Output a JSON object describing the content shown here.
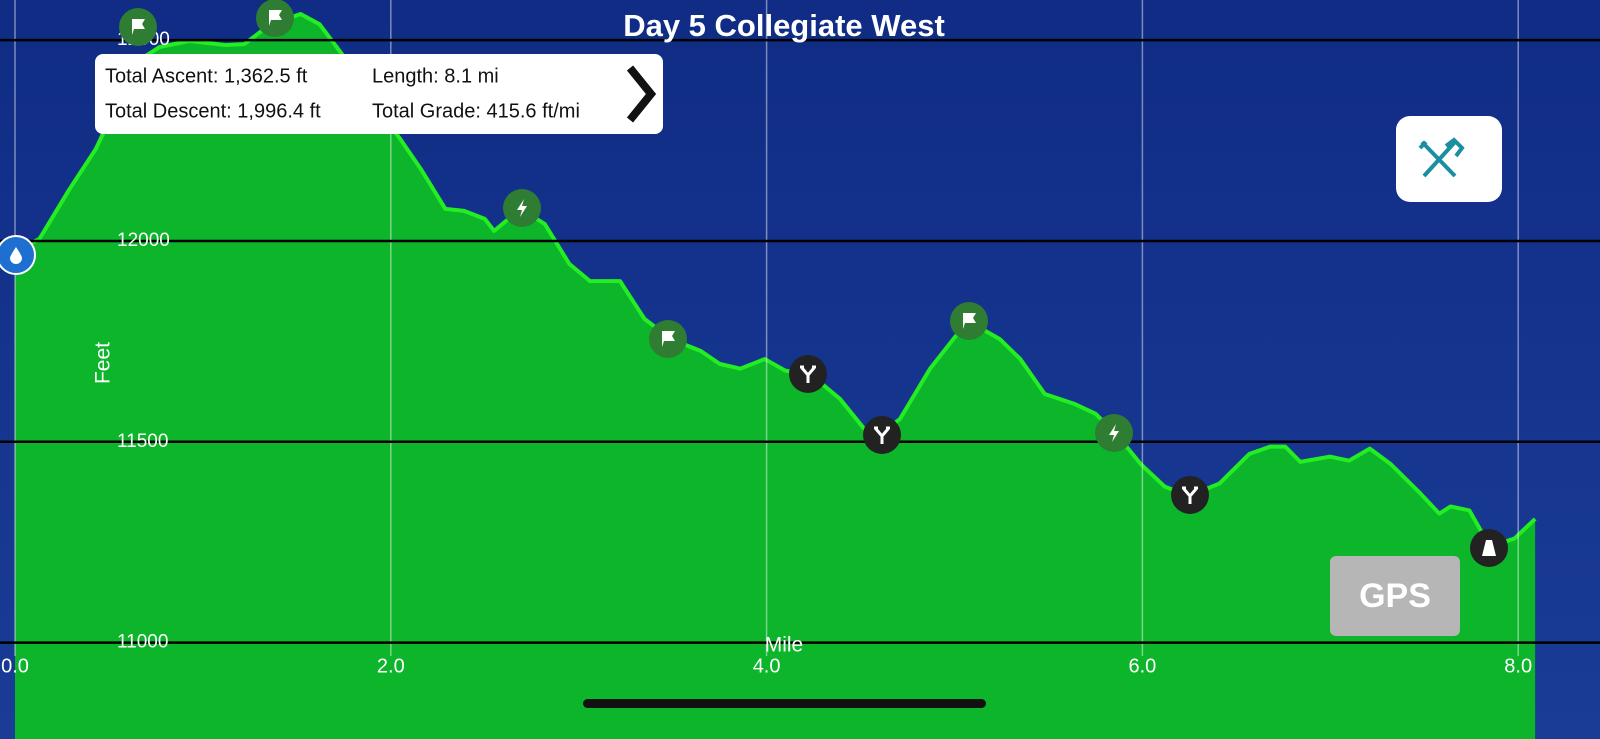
{
  "chart_data": {
    "type": "area",
    "title": "Day 5 Collegiate West",
    "x_label": "Mile",
    "y_label": "Feet",
    "x": [
      0,
      0.13,
      0.29,
      0.43,
      0.51,
      0.67,
      0.77,
      0.93,
      1.12,
      1.22,
      1.36,
      1.52,
      1.62,
      1.76,
      1.89,
      2.05,
      2.16,
      2.29,
      2.39,
      2.5,
      2.55,
      2.69,
      2.82,
      2.95,
      3.06,
      3.22,
      3.35,
      3.49,
      3.65,
      3.75,
      3.86,
      3.99,
      4.1,
      4.23,
      4.39,
      4.52,
      4.61,
      4.71,
      4.87,
      5.07,
      5.24,
      5.35,
      5.48,
      5.64,
      5.75,
      5.86,
      5.99,
      6.12,
      6.25,
      6.41,
      6.57,
      6.68,
      6.76,
      6.84,
      7.0,
      7.1,
      7.21,
      7.32,
      7.48,
      7.58,
      7.64,
      7.74,
      7.85,
      7.98,
      8.09
    ],
    "series": [
      {
        "color": "#22ee22",
        "values": [
          11975,
          12005,
          12129,
          12229,
          12308,
          12453,
          12483,
          12498,
          12488,
          12490,
          12540,
          12565,
          12540,
          12453,
          12353,
          12254,
          12179,
          12080,
          12075,
          12055,
          12025,
          12080,
          12042,
          11943,
          11900,
          11900,
          11806,
          11756,
          11726,
          11694,
          11682,
          11706,
          11677,
          11669,
          11607,
          11532,
          11520,
          11557,
          11682,
          11801,
          11756,
          11706,
          11619,
          11594,
          11570,
          11520,
          11445,
          11388,
          11366,
          11396,
          11470,
          11488,
          11488,
          11450,
          11463,
          11453,
          11483,
          11445,
          11371,
          11321,
          11339,
          11329,
          11239,
          11259,
          11308
        ]
      }
    ],
    "fill_color": "#0cb52a",
    "xlim": [
      0,
      8.1
    ],
    "ylim": [
      10760,
      12600
    ],
    "xticks": [
      {
        "value": 0,
        "label": "0.0"
      },
      {
        "value": 2,
        "label": "2.0"
      },
      {
        "value": 4,
        "label": "4.0"
      },
      {
        "value": 6,
        "label": "6.0"
      },
      {
        "value": 8,
        "label": "8.0"
      }
    ],
    "yticks": [
      11000,
      11500,
      12000,
      12500
    ],
    "grid": true
  },
  "stats": {
    "ascent": "Total Ascent: 1,362.5 ft",
    "length": "Length: 8.1 mi",
    "descent": "Total Descent: 1,996.4 ft",
    "grade": "Total Grade: 415.6 ft/mi"
  },
  "gps_button": "GPS"
}
